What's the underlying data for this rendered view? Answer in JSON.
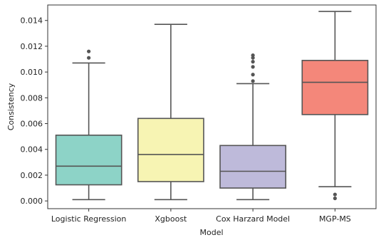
{
  "chart_data": {
    "type": "box",
    "xlabel": "Model",
    "ylabel": "Consistency",
    "ylim": [
      -0.0006,
      0.0152
    ],
    "yticks": [
      0.0,
      0.002,
      0.004,
      0.006,
      0.008,
      0.01,
      0.012,
      0.014
    ],
    "ytick_labels": [
      "0.000",
      "0.002",
      "0.004",
      "0.006",
      "0.008",
      "0.010",
      "0.012",
      "0.014"
    ],
    "categories": [
      "Logistic Regression",
      "Xgboost",
      "Cox Harzard Model",
      "MGP-MS"
    ],
    "boxes": [
      {
        "whisker_low": 0.0001,
        "q1": 0.00125,
        "median": 0.0027,
        "q3": 0.0051,
        "whisker_high": 0.0107,
        "outliers": [
          0.0111,
          0.0116
        ],
        "color": "#8dd3c7"
      },
      {
        "whisker_low": 0.0001,
        "q1": 0.0015,
        "median": 0.0036,
        "q3": 0.0064,
        "whisker_high": 0.0137,
        "outliers": [],
        "color": "#f7f4b3"
      },
      {
        "whisker_low": 0.0001,
        "q1": 0.001,
        "median": 0.0023,
        "q3": 0.0043,
        "whisker_high": 0.0091,
        "outliers": [
          0.0093,
          0.0098,
          0.0104,
          0.0108,
          0.0111,
          0.0113
        ],
        "color": "#bebada"
      },
      {
        "whisker_low": 0.0011,
        "q1": 0.0067,
        "median": 0.0092,
        "q3": 0.0109,
        "whisker_high": 0.0147,
        "outliers": [
          0.0002,
          0.0005
        ],
        "color": "#f4877a"
      }
    ],
    "grid": false,
    "legend": "none"
  }
}
